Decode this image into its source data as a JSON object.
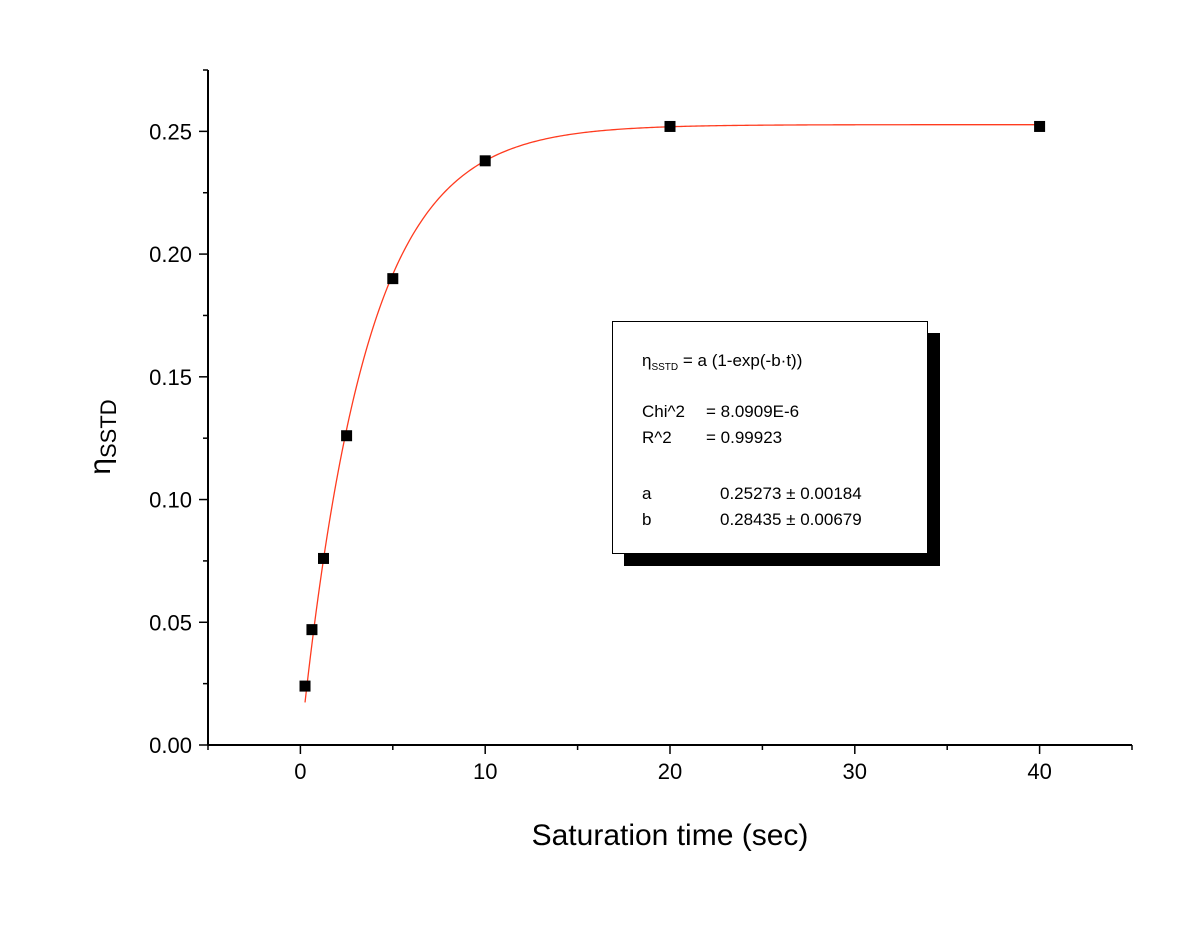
{
  "chart_data": {
    "type": "scatter",
    "xlabel": "Saturation time (sec)",
    "ylabel": {
      "main": "η",
      "sub": "SSTD"
    },
    "xlim": [
      -5,
      45
    ],
    "ylim": [
      0,
      0.275
    ],
    "x_ticks": [
      0,
      10,
      20,
      30,
      40
    ],
    "x_tick_labels": [
      "0",
      "10",
      "20",
      "30",
      "40"
    ],
    "y_ticks": [
      0,
      0.05,
      0.1,
      0.15,
      0.2,
      0.25
    ],
    "y_tick_labels": [
      "0.00",
      "0.05",
      "0.10",
      "0.15",
      "0.20",
      "0.25"
    ],
    "points": [
      {
        "x": 0.25,
        "y": 0.024
      },
      {
        "x": 0.625,
        "y": 0.047
      },
      {
        "x": 1.25,
        "y": 0.076
      },
      {
        "x": 2.5,
        "y": 0.126
      },
      {
        "x": 5,
        "y": 0.19
      },
      {
        "x": 10,
        "y": 0.238
      },
      {
        "x": 20,
        "y": 0.252
      },
      {
        "x": 40,
        "y": 0.252
      }
    ],
    "fit": {
      "a": 0.25273,
      "b": 0.28435,
      "x_start": 0.25,
      "x_end": 40,
      "color": "#ff3b1f"
    },
    "marker_color": "#000000",
    "grid": false
  },
  "fit_box": {
    "equation_eta": "η",
    "equation_sub": "SSTD",
    "equation_rest": " = a (1-exp(-b·t))",
    "chi_label": "Chi^2",
    "chi_value": "=  8.0909E-6",
    "r_label": "R^2",
    "r_value": "=  0.99923",
    "a_label": "a",
    "a_value": "0.25273 ± 0.00184",
    "b_label": "b",
    "b_value": "0.28435 ± 0.00679"
  }
}
